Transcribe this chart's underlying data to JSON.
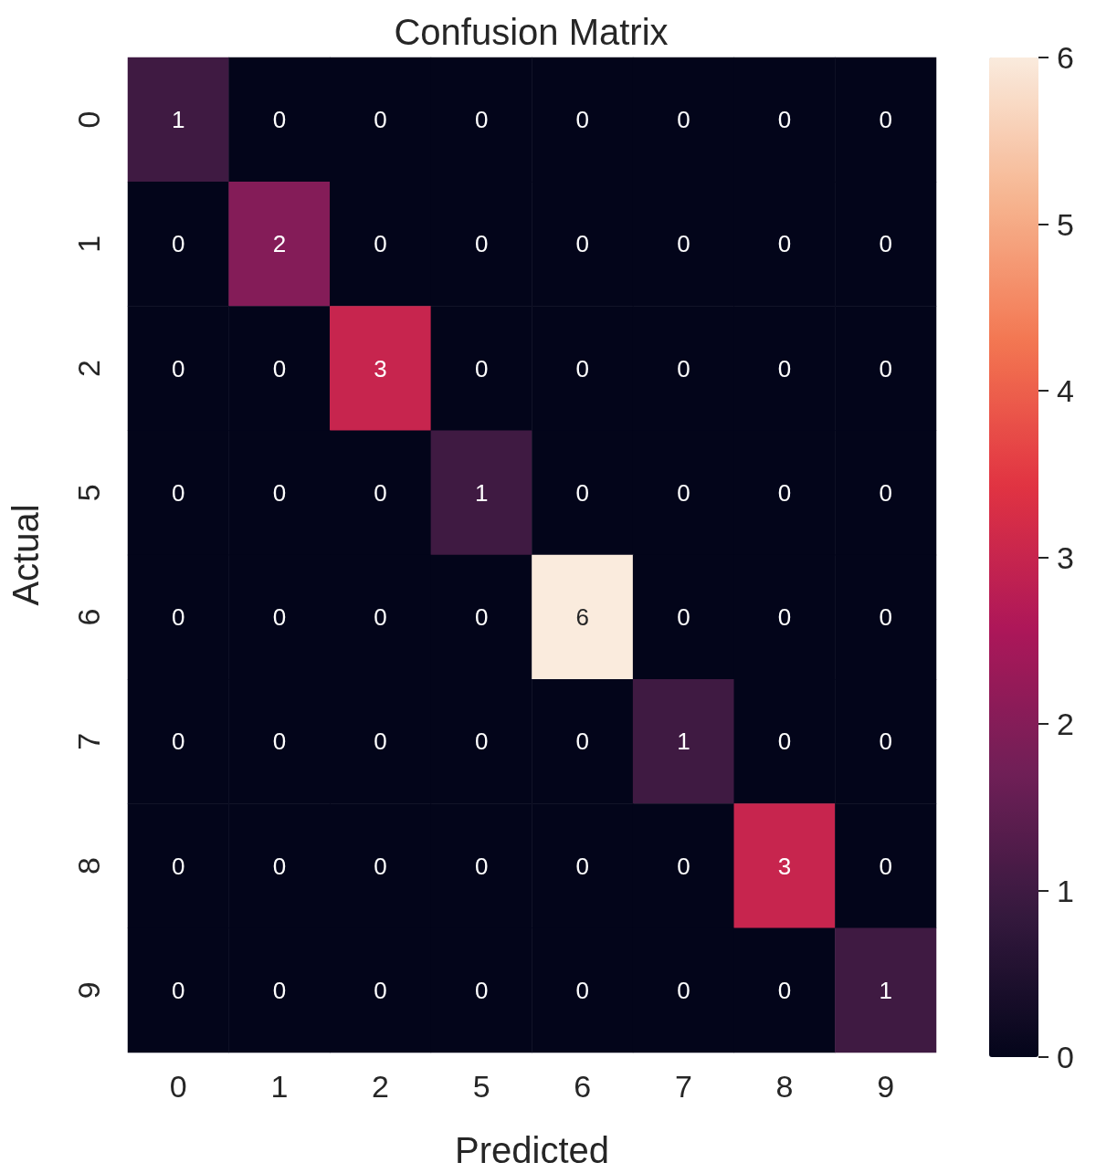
{
  "chart_data": {
    "type": "heatmap",
    "title": "Confusion Matrix",
    "xlabel": "Predicted",
    "ylabel": "Actual",
    "categories": [
      "0",
      "1",
      "2",
      "5",
      "6",
      "7",
      "8",
      "9"
    ],
    "y_categories": [
      "0",
      "1",
      "2",
      "5",
      "6",
      "7",
      "8",
      "9"
    ],
    "cells": [
      [
        1,
        0,
        0,
        0,
        0,
        0,
        0,
        0
      ],
      [
        0,
        2,
        0,
        0,
        0,
        0,
        0,
        0
      ],
      [
        0,
        0,
        3,
        0,
        0,
        0,
        0,
        0
      ],
      [
        0,
        0,
        0,
        1,
        0,
        0,
        0,
        0
      ],
      [
        0,
        0,
        0,
        0,
        6,
        0,
        0,
        0
      ],
      [
        0,
        0,
        0,
        0,
        0,
        1,
        0,
        0
      ],
      [
        0,
        0,
        0,
        0,
        0,
        0,
        3,
        0
      ],
      [
        0,
        0,
        0,
        0,
        0,
        0,
        0,
        1
      ]
    ],
    "clim": [
      0,
      6
    ],
    "cticks": [
      0,
      1,
      2,
      3,
      4,
      5,
      6
    ],
    "data_labels": true
  }
}
